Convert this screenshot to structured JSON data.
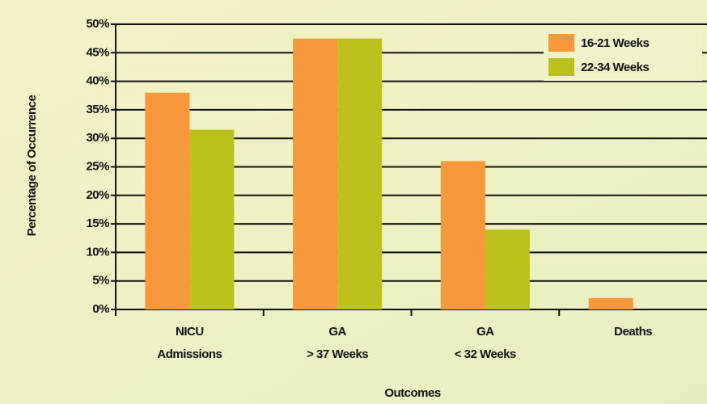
{
  "chart_data": {
    "type": "bar",
    "categories": [
      [
        "NICU",
        "Admissions"
      ],
      [
        "GA",
        "> 37 Weeks"
      ],
      [
        "GA",
        "< 32 Weeks"
      ],
      [
        "Deaths"
      ]
    ],
    "series": [
      {
        "name": "16-21 Weeks",
        "color": "#f7983a",
        "values": [
          38,
          47.5,
          26,
          2
        ]
      },
      {
        "name": "22-34 Weeks",
        "color": "#bcc21c",
        "values": [
          31.5,
          47.5,
          14,
          0
        ]
      }
    ],
    "ylim": [
      0,
      50
    ],
    "yticks": [
      {
        "value": 0,
        "label": "0%"
      },
      {
        "value": 5,
        "label": "5%"
      },
      {
        "value": 10,
        "label": "10%"
      },
      {
        "value": 15,
        "label": "15%"
      },
      {
        "value": 20,
        "label": "20%"
      },
      {
        "value": 25,
        "label": "25%"
      },
      {
        "value": 30,
        "label": "30%"
      },
      {
        "value": 35,
        "label": "35%"
      },
      {
        "value": 40,
        "label": "40%"
      },
      {
        "value": 45,
        "label": "45%"
      },
      {
        "value": 50,
        "label": "50%"
      }
    ],
    "ylabel": "Percentage of Occurrence",
    "xlabel": "Outcomes",
    "grid": true,
    "legend": "top-right"
  }
}
